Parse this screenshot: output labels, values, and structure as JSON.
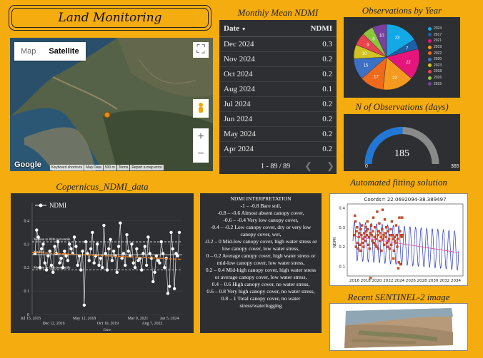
{
  "header": {
    "title": "Land Monitoring"
  },
  "map": {
    "tab_map": "Map",
    "tab_satellite": "Satellite",
    "zoom_in": "+",
    "zoom_out": "−",
    "google": "Google",
    "attribution": [
      "Keyboard shortcuts",
      "Map Data",
      "500 m",
      "Terms",
      "Report a map error"
    ]
  },
  "table": {
    "title": "Monthly Mean NDMI",
    "col_date": "Date",
    "sort_icon": "▼",
    "col_ndmi": "NDMI",
    "rows": [
      {
        "date": "Dec 2024",
        "ndmi": "0.3"
      },
      {
        "date": "Nov 2024",
        "ndmi": "0.2"
      },
      {
        "date": "Oct 2024",
        "ndmi": "0.2"
      },
      {
        "date": "Aug 2024",
        "ndmi": "0.1"
      },
      {
        "date": "Jul 2024",
        "ndmi": "0.2"
      },
      {
        "date": "Jun 2024",
        "ndmi": "0.2"
      },
      {
        "date": "May 2024",
        "ndmi": "0.2"
      },
      {
        "date": "Apr 2024",
        "ndmi": "0.2"
      }
    ],
    "pager": "1 - 89 / 89"
  },
  "pie": {
    "title": "Observations by Year",
    "chart_data": {
      "type": "pie",
      "slices": [
        {
          "label": "2024",
          "value": 23,
          "color": "#13a9e6"
        },
        {
          "label": "2017",
          "value": 7,
          "color": "#1e5fa8"
        },
        {
          "label": "2021",
          "value": 22,
          "color": "#e5157b"
        },
        {
          "label": "2019",
          "value": 22,
          "color": "#f59a1e"
        },
        {
          "label": "2022",
          "value": 17,
          "color": "#f06a1c"
        },
        {
          "label": "2020",
          "value": 15,
          "color": "#3d71c6"
        },
        {
          "label": "2023",
          "value": 10,
          "color": "#d2c223"
        },
        {
          "label": "2018",
          "value": 9,
          "color": "#e8434e"
        },
        {
          "label": "2016",
          "value": 8,
          "color": "#8cc63f"
        },
        {
          "label": "2015",
          "value": 10,
          "color": "#7a3fa0"
        }
      ]
    }
  },
  "gauge": {
    "title": "N of Observations (days)",
    "value": "185",
    "min": "0",
    "max": "365",
    "fraction": 0.507
  },
  "ndmi_chart": {
    "title": "Copernicus_NDMI_data",
    "chart_data": {
      "type": "scatter",
      "legend": "NDMI",
      "xlabel": "Date",
      "ylim": [
        0,
        0.45
      ],
      "yticks": [
        "0",
        "0.1",
        "0.2",
        "0.3",
        "0.4"
      ],
      "xticks_top": [
        "Jul 15, 2015",
        "May 12, 2018",
        "Mar 9, 2021",
        "Jan 5, 2024"
      ],
      "xticks_bottom": [
        "Dec 12, 2016",
        "Oct 10, 2019",
        "Aug 7, 2022"
      ],
      "annotations": [
        "Median to 84th percentile",
        "Median",
        "Median to 16th percentile"
      ],
      "p84": 0.31,
      "median": 0.255,
      "p16": 0.19,
      "trend": [
        0.265,
        0.235
      ],
      "values": [
        0.26,
        0.36,
        0.33,
        0.2,
        0.28,
        0.3,
        0.22,
        0.19,
        0.25,
        0.27,
        0.21,
        0.18,
        0.29,
        0.26,
        0.31,
        0.22,
        0.24,
        0.2,
        0.27,
        0.25,
        0.23,
        0.3,
        0.28,
        0.26,
        0.33,
        0.29,
        0.21,
        0.25,
        0.19,
        0.27,
        0.04,
        0.31,
        0.26,
        0.23,
        0.28,
        0.35,
        0.22,
        0.25,
        0.3,
        0.21,
        0.24,
        0.2,
        0.38,
        0.26,
        0.19,
        0.28,
        0.32,
        0.23,
        0.27,
        0.25,
        0.18,
        0.29,
        0.39,
        0.24,
        0.26,
        0.21,
        0.34,
        0.27,
        0.25,
        0.3,
        0.22,
        0.2,
        0.28,
        0.23,
        0.24,
        0.19,
        0.26,
        0.29,
        0.21,
        0.33,
        0.26,
        0.24,
        0.14,
        0.18,
        0.25,
        0.23,
        0.22,
        0.31,
        0.26,
        0.2,
        0.24,
        0.09,
        0.12,
        0.35,
        0.28,
        0.11,
        0.26,
        0.25,
        0.35
      ]
    }
  },
  "interpretation": {
    "title": "NDMI INTERPRETATION",
    "lines": [
      "-1 – -0.8 Bare soil,",
      "-0.8 – -0.6 Almost absent canopy cover,",
      "-0.6 – -0.4 Very low canopy cover,",
      "-0.4 – -0.2 Low canopy cover, dry or very low canopy cover, wet,",
      "-0.2 – 0 Mid-low canopy cover, high water stress or low canopy cover, low water stress,",
      "0 – 0.2 Average canopy cover, high water stress or mid-low canopy cover, low water stress,",
      "0.2 – 0.4 Mid-high canopy cover, high water stress or average canopy cover, low water stress,",
      "0.4 – 0.6 High canopy cover, no water stress,",
      "0.6 – 0.8 Very high canopy cover, no water stress,",
      "0.8 – 1 Total canopy cover, no water stress/waterlogging"
    ]
  },
  "fit": {
    "title": "Automated fitting solution",
    "chart_data": {
      "type": "line",
      "title": "Coords= 22.0692094-38.389497",
      "ylabel": "NDMI",
      "xticks": [
        "2016",
        "2018",
        "2020",
        "2022",
        "2024",
        "2026",
        "2028",
        "2030",
        "2032",
        "2034"
      ],
      "yticks": [
        "0.1",
        "0.2",
        "0.3",
        "0.4"
      ],
      "trend": [
        0.255,
        0.17
      ]
    }
  },
  "sentinel": {
    "title": "Recent SENTINEL-2 image"
  },
  "colors": {
    "background": "#f5ac0e",
    "panel": "#2e2f33",
    "gauge_fill": "#2177d6",
    "gauge_track": "#8a8a8a"
  }
}
